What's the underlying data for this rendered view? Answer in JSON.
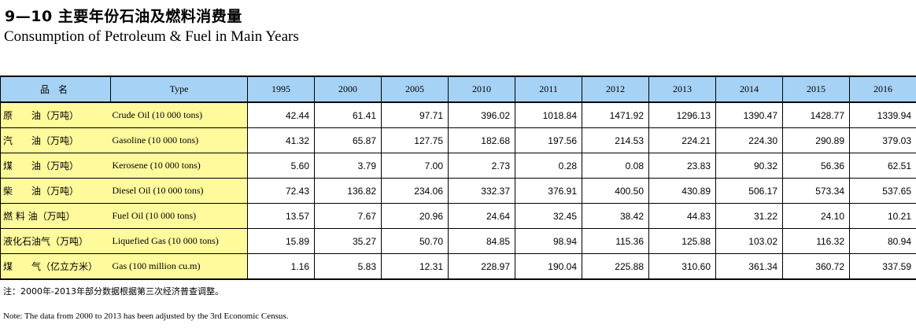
{
  "title_cn": "9—10 主要年份石油及燃料消费量",
  "title_en": "Consumption of Petroleum & Fuel in Main Years",
  "table": {
    "header": {
      "name_cn": "品 名",
      "type_en": "Type",
      "years": [
        "1995",
        "2000",
        "2005",
        "2010",
        "2011",
        "2012",
        "2013",
        "2014",
        "2015",
        "2016"
      ]
    },
    "rows": [
      {
        "cn": "原　　油（万吨）",
        "en": "Crude Oil  (10 000 tons)",
        "values": [
          "42.44",
          "61.41",
          "97.71",
          "396.02",
          "1018.84",
          "1471.92",
          "1296.13",
          "1390.47",
          "1428.77",
          "1339.94"
        ]
      },
      {
        "cn": "汽　　油（万吨）",
        "en": "Gasoline  (10 000 tons)",
        "values": [
          "41.32",
          "65.87",
          "127.75",
          "182.68",
          "197.56",
          "214.53",
          "224.21",
          "224.30",
          "290.89",
          "379.03"
        ]
      },
      {
        "cn": "煤　　油（万吨）",
        "en": "Kerosene  (10 000 tons)",
        "values": [
          "5.60",
          "3.79",
          "7.00",
          "2.73",
          "0.28",
          "0.08",
          "23.83",
          "90.32",
          "56.36",
          "62.51"
        ]
      },
      {
        "cn": "柴　　油（万吨）",
        "en": "Diesel Oil  (10 000 tons)",
        "values": [
          "72.43",
          "136.82",
          "234.06",
          "332.37",
          "376.91",
          "400.50",
          "430.89",
          "506.17",
          "573.34",
          "537.65"
        ]
      },
      {
        "cn": "燃 料 油（万吨）",
        "en": "Fuel Oil  (10 000 tons)",
        "values": [
          "13.57",
          "7.67",
          "20.96",
          "24.64",
          "32.45",
          "38.42",
          "44.83",
          "31.22",
          "24.10",
          "10.21"
        ]
      },
      {
        "cn": "液化石油气（万吨）",
        "en": "Liquefied Gas  (10 000 tons)",
        "values": [
          "15.89",
          "35.27",
          "50.70",
          "84.85",
          "98.94",
          "115.36",
          "125.88",
          "103.02",
          "116.32",
          "80.94"
        ]
      },
      {
        "cn": "煤　　气（亿立方米）",
        "en": "Gas  (100 million cu.m)",
        "values": [
          "1.16",
          "5.83",
          "12.31",
          "228.97",
          "190.04",
          "225.88",
          "310.60",
          "361.34",
          "360.72",
          "337.59"
        ]
      }
    ]
  },
  "note_cn": "注：2000年-2013年部分数据根据第三次经济普查调整。",
  "note_en": "Note: The data from 2000 to 2013 has been adjusted by the 3rd Economic Census."
}
